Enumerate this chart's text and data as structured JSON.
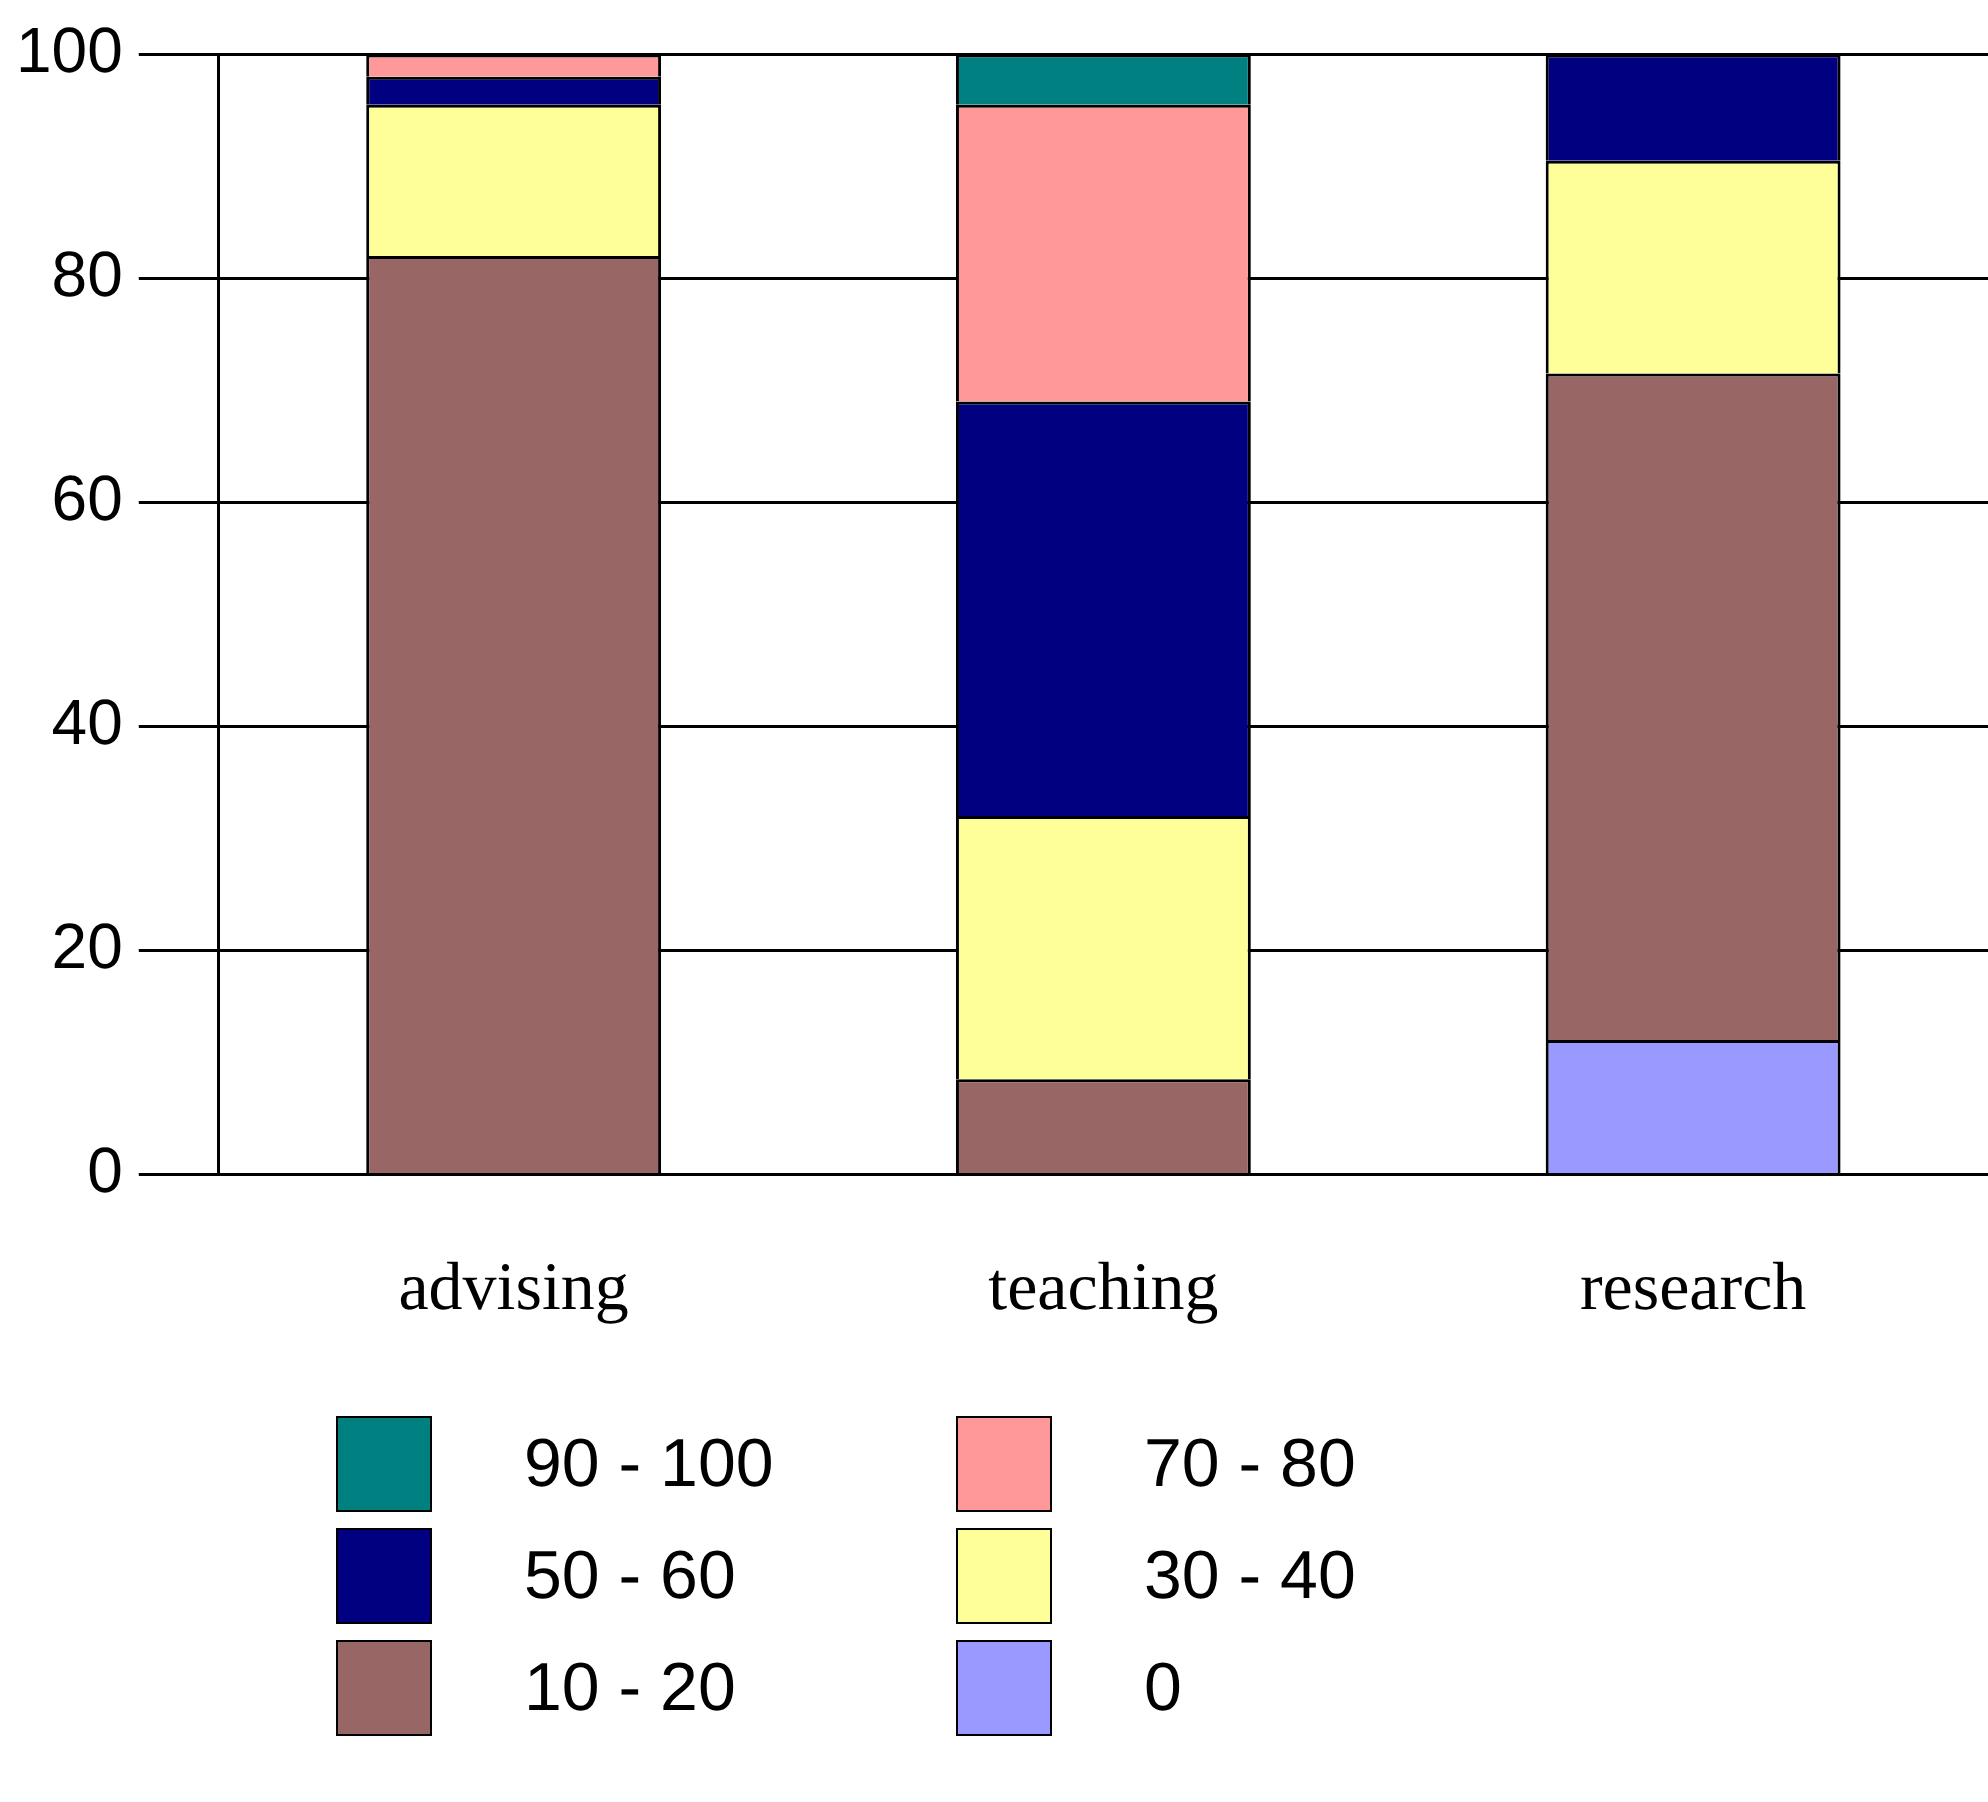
{
  "chart_data": {
    "type": "bar",
    "stacked": true,
    "categories": [
      "advising",
      "teaching",
      "research"
    ],
    "series": [
      {
        "name": "0",
        "color": "#9999ff",
        "values": [
          null,
          null,
          12
        ]
      },
      {
        "name": "10 - 20",
        "color": "#996666",
        "values": [
          82,
          8.5,
          59.5
        ]
      },
      {
        "name": "30 - 40",
        "color": "#ffff99",
        "values": [
          13.5,
          23.5,
          19
        ]
      },
      {
        "name": "50 - 60",
        "color": "#000080",
        "values": [
          2.5,
          37,
          9.5
        ]
      },
      {
        "name": "70 - 80",
        "color": "#ff9999",
        "values": [
          2,
          26.5,
          null
        ]
      },
      {
        "name": "90 - 100",
        "color": "#008080",
        "values": [
          null,
          4.5,
          null
        ]
      }
    ],
    "ylim": [
      0,
      100
    ],
    "yticks": [
      0,
      20,
      40,
      60,
      80,
      100
    ],
    "grid": "y",
    "legend": "bottom"
  }
}
